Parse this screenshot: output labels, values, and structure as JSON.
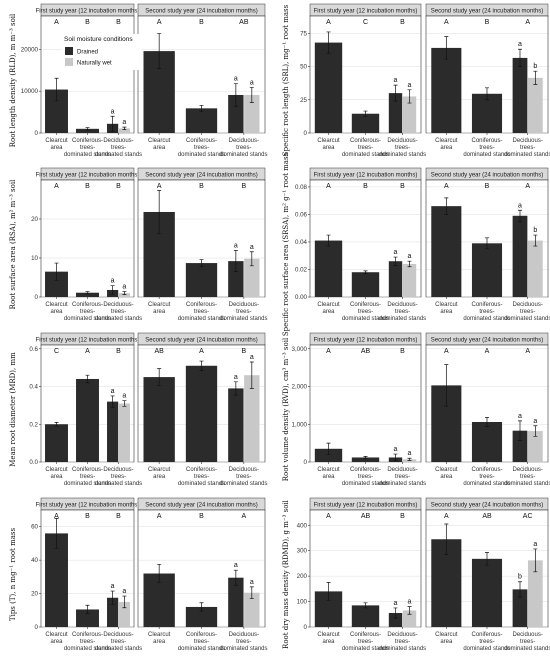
{
  "legend": {
    "title": "Soil moisture conditions",
    "items": [
      {
        "label": "Drained",
        "color": "#2b2b2b"
      },
      {
        "label": "Naturally wet",
        "color": "#c8c8c8"
      }
    ]
  },
  "colors": {
    "drained": "#2b2b2b",
    "wet": "#c8c8c8"
  },
  "chart_data": [
    {
      "type": "bar",
      "ylabel": "Root length density (RLD), m m⁻³ soil",
      "ylim": [
        0,
        28000
      ],
      "ticks": [
        0,
        10000,
        20000
      ],
      "tick_labels": [
        "0",
        "10000",
        "20000"
      ],
      "categories": [
        "Clearcut area",
        "Coniferous-trees-dominated stands",
        "Deciduous-trees-dominated stands"
      ],
      "panels": [
        {
          "strip": "First study year (12 incubation months)",
          "group_letters": [
            "A",
            "B",
            "B"
          ],
          "drained": [
            10400,
            1000,
            2200
          ],
          "drained_err": [
            2700,
            300,
            1800
          ],
          "wet": [
            null,
            null,
            1100
          ],
          "wet_err": [
            null,
            null,
            300
          ],
          "pair_letters": [
            "a",
            "a"
          ]
        },
        {
          "strip": "Second study year (24 incubation months)",
          "group_letters": [
            "A",
            "B",
            "AB"
          ],
          "drained": [
            19600,
            5900,
            9100
          ],
          "drained_err": [
            4200,
            700,
            2700
          ],
          "wet": [
            null,
            null,
            9100
          ],
          "wet_err": [
            null,
            null,
            1800
          ],
          "pair_letters": [
            "a",
            "a"
          ]
        }
      ]
    },
    {
      "type": "bar",
      "ylabel": "Specific root length (SRL), mg⁻¹ root mass",
      "ylim": [
        0,
        88
      ],
      "ticks": [
        0,
        25,
        50,
        75
      ],
      "tick_labels": [
        "0",
        "25",
        "50",
        "75"
      ],
      "categories": [
        "Clearcut area",
        "Coniferous-trees-dominated stands",
        "Deciduous-trees-dominated stands"
      ],
      "panels": [
        {
          "strip": "First study year (12 incubation months)",
          "group_letters": [
            "A",
            "C",
            "B"
          ],
          "drained": [
            68,
            14.5,
            30
          ],
          "drained_err": [
            8,
            2,
            6
          ],
          "wet": [
            null,
            null,
            27.5
          ],
          "wet_err": [
            null,
            null,
            5
          ],
          "pair_letters": [
            "a",
            "a"
          ]
        },
        {
          "strip": "Second study year (24 incubation months)",
          "group_letters": [
            "A",
            "B",
            "A"
          ],
          "drained": [
            64,
            29.5,
            56.5
          ],
          "drained_err": [
            8.5,
            4.5,
            6.5
          ],
          "wet": [
            null,
            null,
            41.5
          ],
          "wet_err": [
            null,
            null,
            5
          ],
          "pair_letters": [
            "a",
            "b"
          ]
        }
      ]
    },
    {
      "type": "bar",
      "ylabel": "Root surface area (RSA), m² m⁻³ soil",
      "ylim": [
        0,
        30
      ],
      "ticks": [
        0,
        10,
        20
      ],
      "tick_labels": [
        "0",
        "10",
        "20"
      ],
      "categories": [
        "Clearcut area",
        "Coniferous-trees-dominated stands",
        "Deciduous-trees-dominated stands"
      ],
      "panels": [
        {
          "strip": "First study year (12 incubation months)",
          "group_letters": [
            "A",
            "B",
            "B"
          ],
          "drained": [
            6.5,
            1.1,
            1.8
          ],
          "drained_err": [
            2.2,
            0.3,
            1.1
          ],
          "wet": [
            null,
            null,
            1.0
          ],
          "wet_err": [
            null,
            null,
            0.4
          ],
          "pair_letters": [
            "a",
            "a"
          ]
        },
        {
          "strip": "Second study year (24 incubation months)",
          "group_letters": [
            "A",
            "B",
            "B"
          ],
          "drained": [
            21.8,
            8.7,
            9.2
          ],
          "drained_err": [
            5.5,
            0.9,
            2.7
          ],
          "wet": [
            null,
            null,
            9.8
          ],
          "wet_err": [
            null,
            null,
            1.8
          ],
          "pair_letters": [
            "a",
            "a"
          ]
        }
      ]
    },
    {
      "type": "bar",
      "ylabel": "Specific root surface area (SRSA), m² g⁻¹ root mass",
      "ylim": [
        0,
        0.085
      ],
      "ticks": [
        0,
        0.02,
        0.04,
        0.06,
        0.08
      ],
      "tick_labels": [
        "0.00",
        "0.02",
        "0.04",
        "0.06",
        "0.08"
      ],
      "categories": [
        "Clearcut area",
        "Coniferous-trees-dominated stands",
        "Deciduous-trees-dominated stands"
      ],
      "panels": [
        {
          "strip": "First study year (12 incubation months)",
          "group_letters": [
            "A",
            "B",
            "B"
          ],
          "drained": [
            0.041,
            0.018,
            0.026
          ],
          "drained_err": [
            0.004,
            0.001,
            0.003
          ],
          "wet": [
            null,
            null,
            0.024
          ],
          "wet_err": [
            null,
            null,
            0.002
          ],
          "pair_letters": [
            "a",
            "a"
          ]
        },
        {
          "strip": "Second study year (24 incubation months)",
          "group_letters": [
            "A",
            "B",
            "A"
          ],
          "drained": [
            0.066,
            0.039,
            0.059
          ],
          "drained_err": [
            0.006,
            0.004,
            0.004
          ],
          "wet": [
            null,
            null,
            0.041
          ],
          "wet_err": [
            null,
            null,
            0.004
          ],
          "pair_letters": [
            "a",
            "b"
          ]
        }
      ]
    },
    {
      "type": "bar",
      "ylabel": "Mean root diameter (MRD), mm",
      "ylim": [
        0,
        0.62
      ],
      "ticks": [
        0,
        0.2,
        0.4,
        0.6
      ],
      "tick_labels": [
        "0.0",
        "0.2",
        "0.4",
        "0.6"
      ],
      "categories": [
        "Clearcut area",
        "Coniferous-trees-dominated stands",
        "Deciduous-trees-dominated stands"
      ],
      "panels": [
        {
          "strip": "First study year (12 incubation months)",
          "group_letters": [
            "C",
            "A",
            "B"
          ],
          "drained": [
            0.2,
            0.44,
            0.32
          ],
          "drained_err": [
            0.01,
            0.02,
            0.03
          ],
          "wet": [
            null,
            null,
            0.31
          ],
          "wet_err": [
            null,
            null,
            0.015
          ],
          "pair_letters": [
            "a",
            "a"
          ]
        },
        {
          "strip": "Second study year (24 incubation months)",
          "group_letters": [
            "AB",
            "A",
            "B"
          ],
          "drained": [
            0.45,
            0.51,
            0.39
          ],
          "drained_err": [
            0.045,
            0.025,
            0.035
          ],
          "wet": [
            null,
            null,
            0.46
          ],
          "wet_err": [
            null,
            null,
            0.07
          ],
          "pair_letters": [
            "a",
            "a"
          ]
        }
      ]
    },
    {
      "type": "bar",
      "ylabel": "Root volume density (RVD), cm³ m⁻³ soil",
      "ylim": [
        0,
        3100
      ],
      "ticks": [
        0,
        1000,
        2000,
        3000
      ],
      "tick_labels": [
        "0",
        "1,000",
        "2,000",
        "3,000"
      ],
      "categories": [
        "Clearcut area",
        "Coniferous-trees-dominated stands",
        "Deciduous-trees-dominated stands"
      ],
      "panels": [
        {
          "strip": "First study year (12 incubation months)",
          "group_letters": [
            "A",
            "AB",
            "B"
          ],
          "drained": [
            350,
            120,
            120
          ],
          "drained_err": [
            150,
            30,
            90
          ],
          "wet": [
            null,
            null,
            70
          ],
          "wet_err": [
            null,
            null,
            30
          ],
          "pair_letters": [
            "a",
            "a"
          ]
        },
        {
          "strip": "Second study year (24 incubation months)",
          "group_letters": [
            "A",
            "A",
            "A"
          ],
          "drained": [
            2030,
            1060,
            830
          ],
          "drained_err": [
            550,
            120,
            260
          ],
          "wet": [
            null,
            null,
            820
          ],
          "wet_err": [
            null,
            null,
            140
          ],
          "pair_letters": [
            "a",
            "a"
          ]
        }
      ]
    },
    {
      "type": "bar",
      "ylabel": "Tips (T), n mg⁻¹ root mass",
      "ylim": [
        0,
        70
      ],
      "ticks": [
        0,
        20,
        40,
        60
      ],
      "tick_labels": [
        "0",
        "20",
        "40",
        "60"
      ],
      "categories": [
        "Clearcut area",
        "Coniferous-trees-dominated stands",
        "Deciduous-trees-dominated stands"
      ],
      "panels": [
        {
          "strip": "First study year (12 incubation months)",
          "group_letters": [
            "A",
            "B",
            "B"
          ],
          "drained": [
            56,
            10.5,
            17.5
          ],
          "drained_err": [
            9,
            2.5,
            4
          ],
          "wet": [
            null,
            null,
            15
          ],
          "wet_err": [
            null,
            null,
            3.5
          ],
          "pair_letters": [
            "a",
            "a"
          ]
        },
        {
          "strip": "Second study year (24 incubation months)",
          "group_letters": [
            "A",
            "B",
            "A"
          ],
          "drained": [
            32,
            12,
            29.5
          ],
          "drained_err": [
            5.5,
            2.5,
            4.5
          ],
          "wet": [
            null,
            null,
            20.5
          ],
          "wet_err": [
            null,
            null,
            3.5
          ],
          "pair_letters": [
            "a",
            "a"
          ]
        }
      ]
    },
    {
      "type": "bar",
      "ylabel": "Root dry mass density (RDMD), g m⁻³ soil",
      "ylim": [
        0,
        460
      ],
      "ticks": [
        0,
        100,
        200,
        300,
        400
      ],
      "tick_labels": [
        "0",
        "100",
        "200",
        "300",
        "400"
      ],
      "categories": [
        "Clearcut area",
        "Coniferous-trees-dominated stands",
        "Deciduous-trees-dominated stands"
      ],
      "panels": [
        {
          "strip": "First study year (12 incubation months)",
          "group_letters": [
            "A",
            "AB",
            "B"
          ],
          "drained": [
            140,
            85,
            55
          ],
          "drained_err": [
            35,
            10,
            20
          ],
          "wet": [
            null,
            null,
            65
          ],
          "wet_err": [
            null,
            null,
            15
          ],
          "pair_letters": [
            "a",
            "a"
          ]
        },
        {
          "strip": "Second study year (24 incubation months)",
          "group_letters": [
            "A",
            "AB",
            "AC"
          ],
          "drained": [
            345,
            268,
            148
          ],
          "drained_err": [
            60,
            25,
            30
          ],
          "wet": [
            null,
            null,
            262
          ],
          "wet_err": [
            null,
            null,
            45
          ],
          "pair_letters": [
            "b",
            "a"
          ]
        }
      ]
    }
  ]
}
